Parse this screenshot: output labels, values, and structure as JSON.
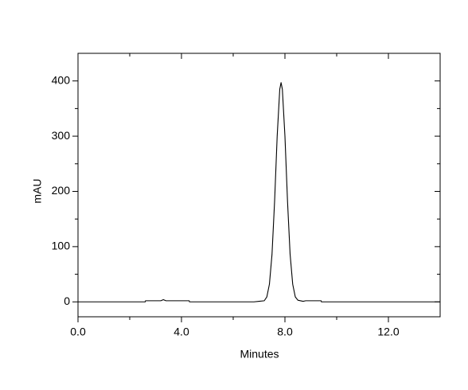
{
  "chart_data": {
    "type": "line",
    "xlabel": "Minutes",
    "ylabel": "mAU",
    "x": [
      0,
      1,
      2,
      2.6,
      2.61,
      3.2,
      3.3,
      3.4,
      4.3,
      4.31,
      6.8,
      7.0,
      7.2,
      7.3,
      7.4,
      7.5,
      7.6,
      7.7,
      7.8,
      7.85,
      7.9,
      8.0,
      8.1,
      8.2,
      8.3,
      8.4,
      8.5,
      8.7,
      8.8,
      9.4,
      9.41,
      12,
      14
    ],
    "series": [
      {
        "color": "#000000",
        "values": [
          0,
          0,
          0,
          0,
          2,
          2,
          4,
          2,
          2,
          0,
          0,
          1,
          2,
          9,
          32,
          86,
          182,
          300,
          385,
          397,
          385,
          300,
          182,
          86,
          32,
          9,
          3,
          1,
          2,
          2,
          0,
          0,
          0
        ]
      }
    ],
    "xlim": [
      0,
      14
    ],
    "ylim": [
      -27,
      450
    ],
    "xticks": [
      {
        "value": 0,
        "label": "0.0"
      },
      {
        "value": 4,
        "label": "4.0"
      },
      {
        "value": 8,
        "label": "8.0"
      },
      {
        "value": 12,
        "label": "12.0"
      }
    ],
    "xminorticks": [
      2,
      6,
      10
    ],
    "yticks": [
      0,
      100,
      200,
      300,
      400
    ],
    "yminorticks": [
      50,
      150,
      250,
      350
    ]
  }
}
